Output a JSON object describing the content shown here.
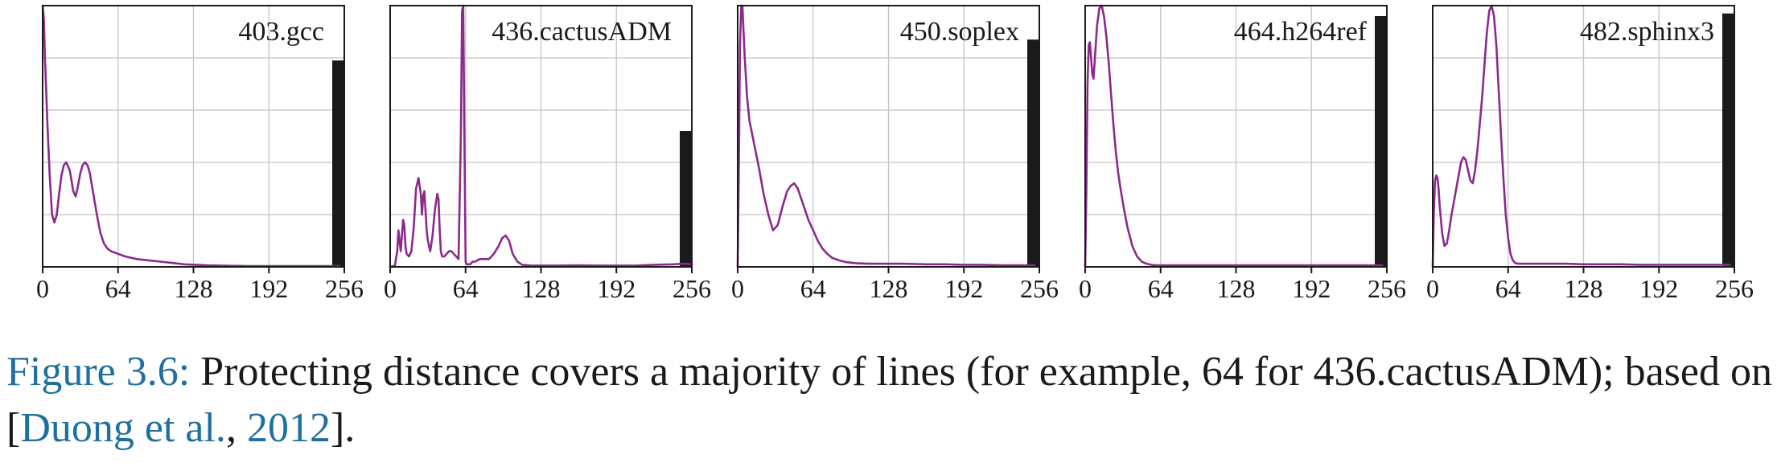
{
  "chart_data": [
    {
      "type": "line",
      "title": "403.gcc",
      "xlim": [
        0,
        256
      ],
      "ylim": [
        0,
        1
      ],
      "xticks": [
        0,
        64,
        128,
        192,
        256
      ],
      "grid": true,
      "color": "#8b2a8b",
      "bar_color": "#1a1a1a",
      "bar_value": 0.79,
      "x": [
        0,
        1,
        2,
        4,
        6,
        8,
        10,
        12,
        14,
        16,
        18,
        20,
        23,
        26,
        28,
        30,
        32,
        34,
        36,
        38,
        40,
        43,
        46,
        49,
        52,
        55,
        58,
        61,
        64,
        70,
        80,
        90,
        100,
        110,
        120,
        130,
        140,
        150,
        160,
        176,
        192,
        208,
        224,
        240,
        252
      ],
      "y": [
        1.0,
        0.95,
        0.8,
        0.55,
        0.35,
        0.2,
        0.17,
        0.2,
        0.28,
        0.35,
        0.39,
        0.4,
        0.37,
        0.29,
        0.27,
        0.31,
        0.36,
        0.39,
        0.4,
        0.39,
        0.36,
        0.28,
        0.2,
        0.13,
        0.09,
        0.07,
        0.06,
        0.055,
        0.05,
        0.04,
        0.03,
        0.025,
        0.02,
        0.015,
        0.01,
        0.008,
        0.006,
        0.005,
        0.004,
        0.003,
        0.003,
        0.003,
        0.003,
        0.003,
        0.003
      ]
    },
    {
      "type": "line",
      "title": "436.cactusADM",
      "xlim": [
        0,
        256
      ],
      "ylim": [
        0,
        1
      ],
      "xticks": [
        0,
        64,
        128,
        192,
        256
      ],
      "grid": true,
      "color": "#8b2a8b",
      "bar_color": "#1a1a1a",
      "bar_value": 0.52,
      "x": [
        0,
        4,
        6,
        7,
        8,
        9,
        10,
        11,
        12,
        13,
        14,
        16,
        18,
        20,
        22,
        24,
        26,
        27,
        28,
        29,
        30,
        31,
        32,
        34,
        36,
        38,
        40,
        41,
        42,
        43,
        44,
        46,
        48,
        50,
        52,
        54,
        56,
        58,
        60,
        61,
        62,
        63,
        64,
        65,
        66,
        68,
        70,
        72,
        76,
        80,
        84,
        88,
        92,
        95,
        98,
        101,
        104,
        108,
        112,
        120,
        128,
        140,
        160,
        176,
        192,
        208,
        224,
        240,
        250,
        256
      ],
      "y": [
        0.0,
        0.005,
        0.06,
        0.14,
        0.1,
        0.06,
        0.12,
        0.18,
        0.16,
        0.08,
        0.05,
        0.04,
        0.06,
        0.15,
        0.3,
        0.34,
        0.28,
        0.2,
        0.27,
        0.29,
        0.22,
        0.14,
        0.1,
        0.06,
        0.12,
        0.22,
        0.28,
        0.26,
        0.15,
        0.06,
        0.04,
        0.04,
        0.05,
        0.06,
        0.06,
        0.05,
        0.04,
        0.03,
        0.5,
        0.98,
        1.0,
        0.5,
        0.02,
        0.01,
        0.01,
        0.01,
        0.02,
        0.02,
        0.03,
        0.03,
        0.03,
        0.05,
        0.08,
        0.11,
        0.12,
        0.1,
        0.05,
        0.02,
        0.008,
        0.005,
        0.005,
        0.005,
        0.006,
        0.005,
        0.005,
        0.005,
        0.008,
        0.01,
        0.012,
        0.01
      ]
    },
    {
      "type": "line",
      "title": "450.soplex",
      "xlim": [
        0,
        256
      ],
      "ylim": [
        0,
        1
      ],
      "xticks": [
        0,
        64,
        128,
        192,
        256
      ],
      "grid": true,
      "color": "#8b2a8b",
      "bar_color": "#1a1a1a",
      "bar_value": 0.87,
      "x": [
        0,
        1,
        2,
        3,
        4,
        5,
        6,
        8,
        10,
        14,
        18,
        22,
        26,
        30,
        34,
        38,
        42,
        45,
        48,
        51,
        54,
        57,
        60,
        64,
        68,
        72,
        76,
        80,
        86,
        92,
        100,
        110,
        120,
        128,
        140,
        160,
        176,
        192,
        208,
        224,
        240,
        252
      ],
      "y": [
        0.0,
        0.4,
        0.85,
        1.0,
        1.0,
        0.9,
        0.8,
        0.65,
        0.56,
        0.47,
        0.38,
        0.28,
        0.2,
        0.14,
        0.16,
        0.23,
        0.29,
        0.31,
        0.32,
        0.3,
        0.26,
        0.22,
        0.18,
        0.14,
        0.1,
        0.07,
        0.05,
        0.035,
        0.025,
        0.018,
        0.014,
        0.012,
        0.012,
        0.012,
        0.012,
        0.01,
        0.01,
        0.008,
        0.008,
        0.006,
        0.006,
        0.006
      ]
    },
    {
      "type": "line",
      "title": "464.h264ref",
      "xlim": [
        0,
        256
      ],
      "ylim": [
        0,
        1
      ],
      "xticks": [
        0,
        64,
        128,
        192,
        256
      ],
      "grid": true,
      "color": "#8b2a8b",
      "bar_color": "#1a1a1a",
      "bar_value": 0.96,
      "x": [
        0,
        1,
        2,
        3,
        4,
        5,
        6,
        7,
        8,
        10,
        12,
        14,
        16,
        18,
        20,
        22,
        24,
        26,
        28,
        30,
        33,
        36,
        40,
        44,
        48,
        52,
        56,
        60,
        64,
        72,
        80,
        96,
        112,
        128,
        144,
        160,
        176,
        192,
        208,
        224,
        240,
        252
      ],
      "y": [
        0.0,
        0.3,
        0.7,
        0.85,
        0.86,
        0.8,
        0.74,
        0.72,
        0.78,
        0.92,
        0.99,
        1.0,
        0.96,
        0.88,
        0.78,
        0.66,
        0.54,
        0.44,
        0.36,
        0.3,
        0.22,
        0.15,
        0.08,
        0.04,
        0.02,
        0.012,
        0.008,
        0.006,
        0.006,
        0.006,
        0.006,
        0.006,
        0.006,
        0.006,
        0.006,
        0.006,
        0.006,
        0.006,
        0.006,
        0.006,
        0.006,
        0.006
      ]
    },
    {
      "type": "line",
      "title": "482.sphinx3",
      "xlim": [
        0,
        256
      ],
      "ylim": [
        0,
        1
      ],
      "xticks": [
        0,
        64,
        128,
        192,
        256
      ],
      "grid": true,
      "color": "#8b2a8b",
      "bar_color": "#1a1a1a",
      "bar_value": 0.97,
      "x": [
        0,
        1,
        2,
        3,
        4,
        5,
        6,
        8,
        10,
        12,
        14,
        16,
        18,
        20,
        22,
        24,
        26,
        28,
        30,
        32,
        34,
        36,
        38,
        40,
        42,
        44,
        46,
        48,
        50,
        52,
        54,
        56,
        58,
        60,
        62,
        64,
        66,
        68,
        70,
        72,
        74,
        76,
        80,
        88,
        96,
        112,
        128,
        144,
        160,
        176,
        192,
        208,
        224,
        240,
        252
      ],
      "y": [
        0.0,
        0.22,
        0.33,
        0.35,
        0.34,
        0.3,
        0.23,
        0.13,
        0.08,
        0.09,
        0.14,
        0.2,
        0.25,
        0.3,
        0.35,
        0.4,
        0.42,
        0.41,
        0.37,
        0.33,
        0.32,
        0.37,
        0.45,
        0.55,
        0.65,
        0.78,
        0.9,
        0.98,
        1.0,
        0.96,
        0.85,
        0.68,
        0.5,
        0.34,
        0.2,
        0.11,
        0.05,
        0.025,
        0.015,
        0.012,
        0.012,
        0.012,
        0.012,
        0.012,
        0.012,
        0.012,
        0.01,
        0.01,
        0.01,
        0.008,
        0.008,
        0.008,
        0.008,
        0.008,
        0.008
      ]
    }
  ],
  "caption": {
    "label": "Figure 3.6:",
    "text": " Protecting distance covers a majority of lines (for example, 64 for 436.cactusADM); based on [",
    "cite_author": "Duong et al.",
    "cite_sep": ", ",
    "cite_year": "2012",
    "end": "]."
  }
}
